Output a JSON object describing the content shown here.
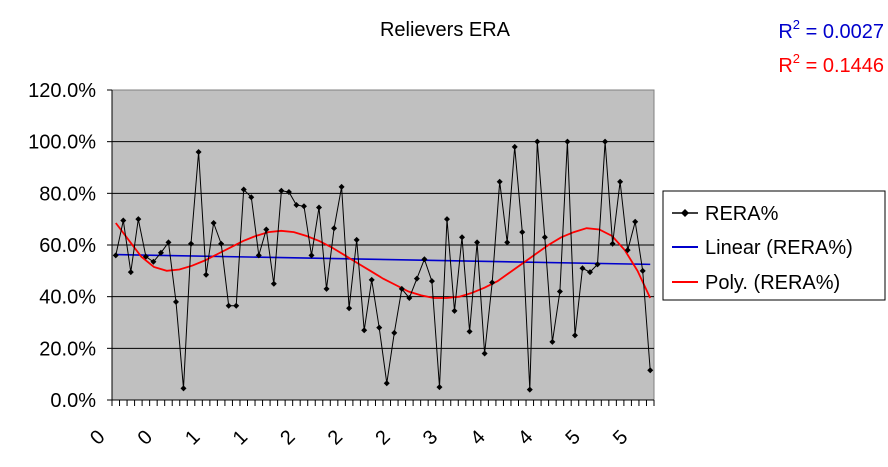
{
  "chart_data": {
    "type": "line",
    "title": "Relievers ERA",
    "xlabel": "",
    "ylabel": "",
    "ylim": [
      0,
      120
    ],
    "y_tick_labels": [
      "0.0%",
      "20.0%",
      "40.0%",
      "60.0%",
      "80.0%",
      "100.0%",
      "120.0%"
    ],
    "x_tick_labels": [
      "0",
      "0",
      "1",
      "1",
      "2",
      "2",
      "2",
      "3",
      "4",
      "4",
      "5",
      "5"
    ],
    "grid": true,
    "legend_position": "right",
    "plot_background": "#c0c0c0",
    "series": [
      {
        "name": "RERA%",
        "color": "#000000",
        "marker": "diamond",
        "values": [
          56.0,
          69.5,
          49.5,
          70.0,
          55.5,
          53.5,
          57.0,
          61.0,
          38.0,
          4.5,
          60.5,
          96.0,
          48.5,
          68.5,
          60.5,
          36.5,
          36.5,
          81.5,
          78.5,
          56.0,
          66.0,
          45.0,
          81.0,
          80.5,
          75.5,
          75.0,
          56.0,
          74.5,
          43.0,
          66.5,
          82.5,
          35.5,
          62.0,
          27.0,
          46.5,
          28.0,
          6.5,
          26.0,
          43.0,
          39.5,
          47.0,
          54.5,
          46.0,
          5.0,
          70.0,
          34.5,
          63.0,
          26.5,
          61.0,
          18.0,
          45.5,
          84.5,
          61.0,
          98.0,
          65.0,
          4.0,
          100.0,
          63.0,
          22.5,
          42.0,
          100.0,
          25.0,
          51.0,
          49.5,
          52.5,
          100.0,
          60.5,
          84.5,
          58.0,
          69.0,
          50.0,
          11.5
        ]
      },
      {
        "name": "Linear (RERA%)",
        "color": "#0000cc",
        "values": [
          56.3,
          52.5
        ]
      },
      {
        "name": "Poly. (RERA%)",
        "color": "#ff0000",
        "values": [
          68.5,
          62.0,
          55.5,
          51.5,
          50.0,
          50.5,
          52.0,
          54.0,
          56.5,
          59.0,
          61.5,
          63.5,
          65.0,
          65.5,
          65.0,
          63.5,
          61.5,
          59.0,
          56.0,
          53.0,
          50.0,
          47.0,
          44.5,
          42.0,
          40.5,
          39.5,
          39.5,
          40.0,
          41.5,
          43.5,
          46.0,
          49.5,
          53.0,
          56.5,
          60.0,
          63.0,
          65.0,
          66.5,
          66.0,
          63.5,
          58.0,
          50.0,
          39.5
        ]
      }
    ],
    "annotations": [
      {
        "text": "R² = 0.0027",
        "base": "R",
        "exp": "2",
        "rest": " = 0.0027",
        "color": "#0000cc"
      },
      {
        "text": "R² = 0.1446",
        "base": "R",
        "exp": "2",
        "rest": " = 0.1446",
        "color": "#ff0000"
      }
    ]
  }
}
